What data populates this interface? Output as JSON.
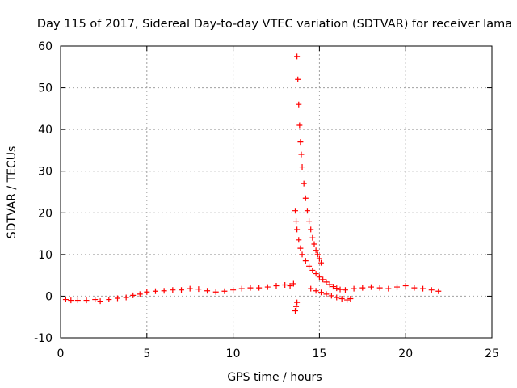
{
  "chart_data": {
    "type": "scatter",
    "title": "Day 115 of 2017, Sidereal Day-to-day VTEC variation (SDTVAR) for receiver lama",
    "xlabel": "GPS time / hours",
    "ylabel": "SDTVAR / TECUs",
    "xlim": [
      0,
      25
    ],
    "ylim": [
      -10,
      60
    ],
    "xticks": [
      0,
      5,
      10,
      15,
      20,
      25
    ],
    "yticks": [
      -10,
      0,
      10,
      20,
      30,
      40,
      50,
      60
    ],
    "grid": true,
    "marker": "plus",
    "color": "#ff0000",
    "series": [
      {
        "name": "baseline",
        "x": [
          0.3,
          0.6,
          1.0,
          1.5,
          2.0,
          2.3,
          2.8,
          3.3,
          3.8,
          4.2,
          4.6,
          5.0,
          5.5,
          6.0,
          6.5,
          7.0,
          7.5,
          8.0,
          8.5,
          9.0,
          9.5,
          10.0,
          10.5,
          11.0,
          11.5,
          12.0,
          12.5,
          13.0,
          13.3
        ],
        "y": [
          -0.8,
          -1.0,
          -1.0,
          -1.0,
          -0.8,
          -1.2,
          -0.8,
          -0.5,
          -0.3,
          0.2,
          0.5,
          1.0,
          1.2,
          1.3,
          1.5,
          1.5,
          1.8,
          1.7,
          1.3,
          1.0,
          1.2,
          1.5,
          1.8,
          2.0,
          2.0,
          2.2,
          2.5,
          2.7,
          2.5
        ]
      },
      {
        "name": "isolated-points",
        "x": [
          13.5,
          13.6,
          13.65,
          13.7
        ],
        "y": [
          3.0,
          -3.5,
          -2.5,
          -1.5
        ]
      },
      {
        "name": "upper-peak-decay",
        "x": [
          13.7,
          13.75,
          13.8,
          13.85,
          13.9,
          13.95,
          14.0,
          14.1,
          14.2,
          14.3,
          14.4,
          14.5,
          14.6,
          14.7,
          14.8,
          14.9,
          15.0,
          15.1
        ],
        "y": [
          57.5,
          52.0,
          46.0,
          41.0,
          37.0,
          34.0,
          31.0,
          27.0,
          23.5,
          20.5,
          18.0,
          16.0,
          14.0,
          12.5,
          11.0,
          10.0,
          9.0,
          8.0
        ]
      },
      {
        "name": "lower-peak-decay",
        "x": [
          13.6,
          13.65,
          13.7,
          13.8,
          13.9,
          14.0,
          14.2,
          14.4,
          14.6,
          14.8,
          15.0,
          15.2,
          15.4,
          15.6,
          15.8,
          16.0,
          16.2
        ],
        "y": [
          20.5,
          18.0,
          16.0,
          13.5,
          11.5,
          10.0,
          8.5,
          7.2,
          6.2,
          5.4,
          4.6,
          4.0,
          3.4,
          2.8,
          2.3,
          1.9,
          1.6
        ]
      },
      {
        "name": "falling-branch",
        "x": [
          14.5,
          14.8,
          15.1,
          15.4,
          15.7,
          16.0,
          16.3,
          16.6,
          16.8
        ],
        "y": [
          1.8,
          1.3,
          0.9,
          0.5,
          0.1,
          -0.3,
          -0.6,
          -0.9,
          -0.6
        ]
      },
      {
        "name": "post-event-baseline",
        "x": [
          16.5,
          17.0,
          17.5,
          18.0,
          18.5,
          19.0,
          19.5,
          20.0,
          20.5,
          21.0,
          21.5,
          21.9
        ],
        "y": [
          1.5,
          1.8,
          2.0,
          2.2,
          2.0,
          1.8,
          2.2,
          2.5,
          2.0,
          1.8,
          1.5,
          1.2
        ]
      }
    ]
  }
}
